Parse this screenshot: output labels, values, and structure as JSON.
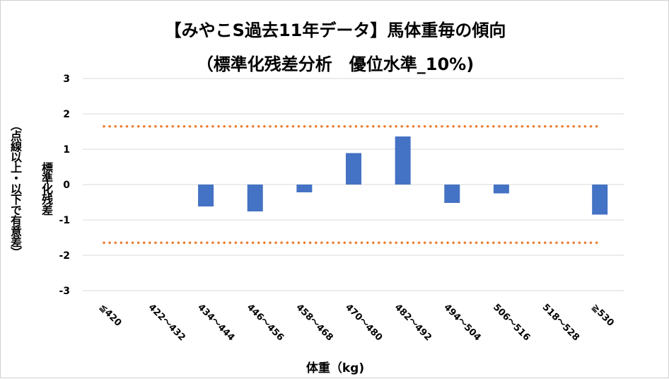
{
  "chart_data": {
    "type": "bar",
    "title": "【みやこS過去11年データ】馬体重毎の傾向",
    "subtitle": "（標準化残差分析　優位水準_10%)",
    "xlabel": "体重（kg)",
    "ylabel": "標準化残差",
    "ylabel_note": "（点線以上・以下で有意差）",
    "categories": [
      "≦420",
      "422～432",
      "434～444",
      "446～456",
      "458～468",
      "470～480",
      "482～492",
      "494～504",
      "506～516",
      "518～528",
      "≧530"
    ],
    "values": [
      null,
      null,
      -0.62,
      -0.76,
      -0.22,
      0.89,
      1.36,
      -0.52,
      -0.25,
      null,
      -0.85
    ],
    "ylim": [
      -3,
      3
    ],
    "yticks": [
      3,
      2,
      1,
      0,
      -1,
      -2,
      -3
    ],
    "threshold_lines": [
      1.645,
      -1.645
    ],
    "grid": true,
    "colors": {
      "bar": "#4472c4",
      "threshold": "#ed7d31",
      "grid": "#d9d9d9"
    }
  }
}
